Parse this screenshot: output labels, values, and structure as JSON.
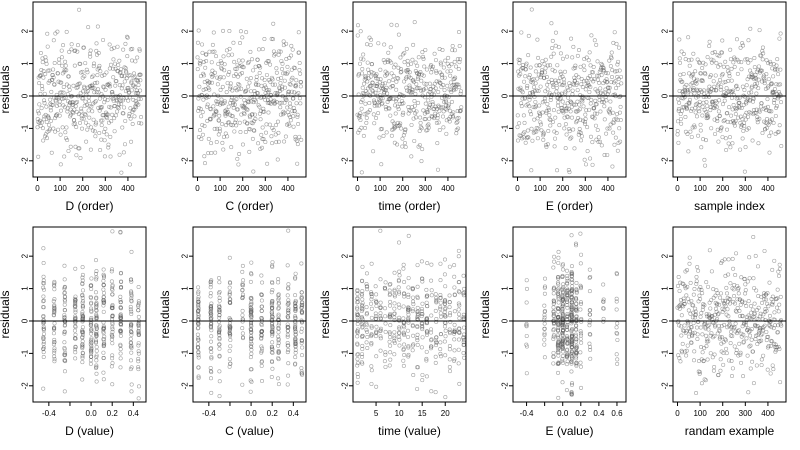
{
  "chart_data": [
    {
      "type": "scatter",
      "xlabel": "D (order)",
      "ylabel": "residuals",
      "xlim": [
        -20,
        480
      ],
      "ylim": [
        -2.5,
        2.9
      ],
      "xticks": [
        0,
        100,
        200,
        300,
        400
      ],
      "yticks": [
        -2,
        -1,
        0,
        1,
        2
      ],
      "reference_line_y": 0,
      "n": 460,
      "x_kind": "order",
      "seed": 11
    },
    {
      "type": "scatter",
      "xlabel": "C (order)",
      "ylabel": "residuals",
      "xlim": [
        -20,
        480
      ],
      "ylim": [
        -2.5,
        2.9
      ],
      "xticks": [
        0,
        100,
        200,
        300,
        400
      ],
      "yticks": [
        -2,
        -1,
        0,
        1,
        2
      ],
      "reference_line_y": 0,
      "n": 460,
      "x_kind": "order",
      "seed": 12
    },
    {
      "type": "scatter",
      "xlabel": "time (order)",
      "ylabel": "residuals",
      "xlim": [
        -20,
        480
      ],
      "ylim": [
        -2.5,
        2.9
      ],
      "xticks": [
        0,
        100,
        200,
        300,
        400
      ],
      "yticks": [
        -2,
        -1,
        0,
        1,
        2
      ],
      "reference_line_y": 0,
      "n": 460,
      "x_kind": "order",
      "seed": 13
    },
    {
      "type": "scatter",
      "xlabel": "E (order)",
      "ylabel": "residuals",
      "xlim": [
        -20,
        480
      ],
      "ylim": [
        -2.5,
        2.9
      ],
      "xticks": [
        0,
        100,
        200,
        300,
        400
      ],
      "yticks": [
        -2,
        -1,
        0,
        1,
        2
      ],
      "reference_line_y": 0,
      "n": 460,
      "x_kind": "order",
      "seed": 14
    },
    {
      "type": "scatter",
      "xlabel": "sample index",
      "ylabel": "residuals",
      "xlim": [
        -20,
        480
      ],
      "ylim": [
        -2.5,
        2.9
      ],
      "xticks": [
        0,
        100,
        200,
        300,
        400
      ],
      "yticks": [
        -2,
        -1,
        0,
        1,
        2
      ],
      "reference_line_y": 0,
      "n": 460,
      "x_kind": "order",
      "seed": 15
    },
    {
      "type": "scatter",
      "xlabel": "D (value)",
      "ylabel": "residuals",
      "xlim": [
        -0.55,
        0.52
      ],
      "ylim": [
        -2.5,
        2.9
      ],
      "xticks": [
        -0.4,
        -0.2,
        0.0,
        0.2,
        0.4
      ],
      "xtick_labels": [
        "-0.4",
        "",
        "0.0",
        "0.2",
        "0.4"
      ],
      "yticks": [
        -2,
        -1,
        0,
        1,
        2
      ],
      "reference_line_y": 0,
      "n": 460,
      "x_kind": "clustered",
      "x_centers": [
        -0.45,
        -0.35,
        -0.25,
        -0.15,
        -0.08,
        0.0,
        0.05,
        0.12,
        0.2,
        0.28,
        0.38,
        0.45
      ],
      "seed": 21
    },
    {
      "type": "scatter",
      "xlabel": "C (value)",
      "ylabel": "residuals",
      "xlim": [
        -0.55,
        0.52
      ],
      "ylim": [
        -2.5,
        2.9
      ],
      "xticks": [
        -0.4,
        -0.2,
        0.0,
        0.2,
        0.4
      ],
      "xtick_labels": [
        "-0.4",
        "",
        "0.0",
        "0.2",
        "0.4"
      ],
      "yticks": [
        -2,
        -1,
        0,
        1,
        2
      ],
      "reference_line_y": 0,
      "n": 460,
      "x_kind": "clustered",
      "x_centers": [
        -0.5,
        -0.38,
        -0.3,
        -0.2,
        -0.08,
        0.0,
        0.1,
        0.2,
        0.26,
        0.35,
        0.42,
        0.48
      ],
      "seed": 22
    },
    {
      "type": "scatter",
      "xlabel": "time (value)",
      "ylabel": "residuals",
      "xlim": [
        0,
        24.5
      ],
      "ylim": [
        -2.5,
        2.9
      ],
      "xticks": [
        5,
        10,
        15,
        20
      ],
      "yticks": [
        -2,
        -1,
        0,
        1,
        2
      ],
      "reference_line_y": 0,
      "n": 460,
      "x_kind": "clustered",
      "x_centers": [
        1,
        2,
        3,
        4,
        5,
        6,
        7,
        8,
        9,
        10,
        11,
        12,
        13,
        14,
        15,
        16,
        17,
        18,
        19,
        20,
        21,
        22,
        23,
        24
      ],
      "seed": 23
    },
    {
      "type": "scatter",
      "xlabel": "E (value)",
      "ylabel": "residuals",
      "xlim": [
        -0.55,
        0.7
      ],
      "ylim": [
        -2.5,
        2.9
      ],
      "xticks": [
        -0.4,
        -0.2,
        0.0,
        0.2,
        0.4,
        0.6
      ],
      "xtick_labels": [
        "-0.4",
        "",
        "0.0",
        "0.2",
        "0.4",
        "0.6"
      ],
      "yticks": [
        -2,
        -1,
        0,
        1,
        2
      ],
      "reference_line_y": 0,
      "n": 460,
      "x_kind": "clustered",
      "x_centers": [
        -0.4,
        -0.2,
        -0.1,
        -0.05,
        0.0,
        0.05,
        0.1,
        0.15,
        0.2,
        0.3,
        0.45,
        0.6
      ],
      "x_center_weights": [
        1,
        2,
        3,
        5,
        9,
        6,
        9,
        5,
        3,
        2,
        1,
        1
      ],
      "seed": 24
    },
    {
      "type": "scatter",
      "xlabel": "randam example",
      "ylabel": "residuals",
      "xlim": [
        -20,
        480
      ],
      "ylim": [
        -2.5,
        2.9
      ],
      "xticks": [
        0,
        100,
        200,
        300,
        400
      ],
      "yticks": [
        -2,
        -1,
        0,
        1,
        2
      ],
      "reference_line_y": 0,
      "n": 460,
      "x_kind": "order",
      "seed": 25
    }
  ]
}
